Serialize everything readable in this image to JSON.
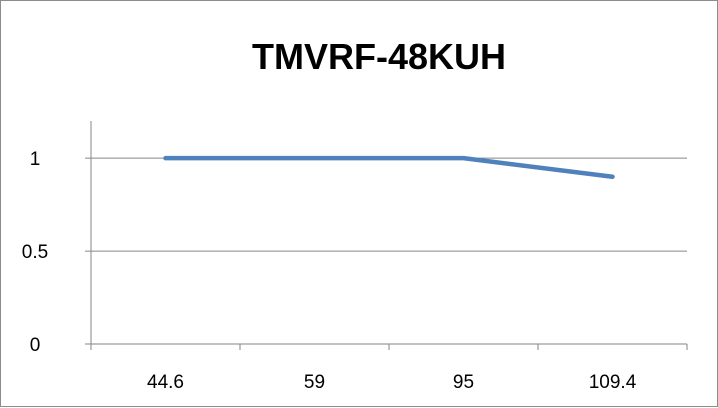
{
  "chart_data": {
    "type": "line",
    "title": "TMVRF-48KUH",
    "categories": [
      "44.6",
      "59",
      "95",
      "109.4"
    ],
    "series": [
      {
        "values": [
          1,
          1,
          1,
          0.9
        ]
      }
    ],
    "ylim": [
      0,
      1.2
    ],
    "y_ticks": [
      "0",
      "0.5",
      "1"
    ],
    "y_tick_values": [
      0,
      0.5,
      1
    ],
    "grid": true,
    "legend": "none",
    "colors": {
      "line": "#4f81bd",
      "grid": "#868686",
      "axis": "#868686"
    }
  }
}
